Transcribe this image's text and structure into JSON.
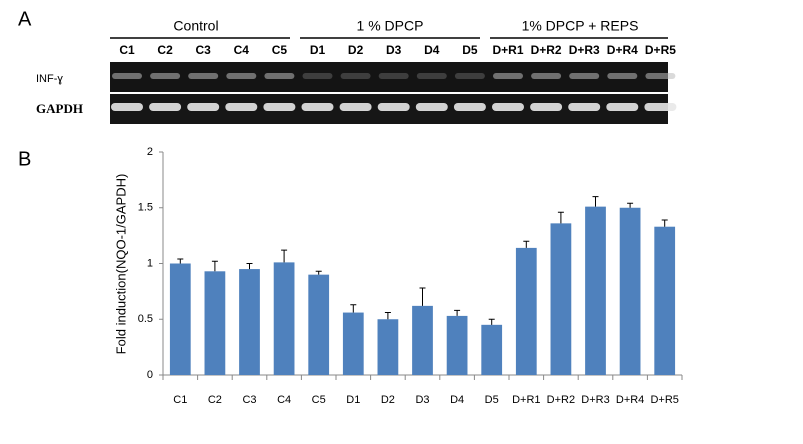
{
  "panel_a": {
    "label": "A",
    "groups": [
      "Control",
      "1 % DPCP",
      "1% DPCP + REPS"
    ],
    "lanes": [
      "C1",
      "C2",
      "C3",
      "C4",
      "C5",
      "D1",
      "D2",
      "D3",
      "D4",
      "D5",
      "D+R1",
      "D+R2",
      "D+R3",
      "D+R4",
      "D+R5"
    ],
    "rows": [
      "INF-ɣ",
      "GAPDH"
    ]
  },
  "panel_b_label": "B",
  "chart_data": {
    "type": "bar",
    "ylabel": "Fold induction(NQO-1/GAPDH)",
    "categories": [
      "C1",
      "C2",
      "C3",
      "C4",
      "C5",
      "D1",
      "D2",
      "D3",
      "D4",
      "D5",
      "D+R1",
      "D+R2",
      "D+R3",
      "D+R4",
      "D+R5"
    ],
    "values": [
      1.0,
      0.93,
      0.95,
      1.01,
      0.9,
      0.56,
      0.5,
      0.62,
      0.53,
      0.45,
      1.14,
      1.36,
      1.51,
      1.5,
      1.33
    ],
    "errors": [
      0.04,
      0.09,
      0.05,
      0.11,
      0.03,
      0.07,
      0.06,
      0.16,
      0.05,
      0.05,
      0.06,
      0.1,
      0.09,
      0.04,
      0.06
    ],
    "color": "#4f81bd",
    "ylim": [
      0,
      2
    ],
    "yticks": [
      0,
      0.5,
      1,
      1.5,
      2
    ],
    "grid": false
  }
}
